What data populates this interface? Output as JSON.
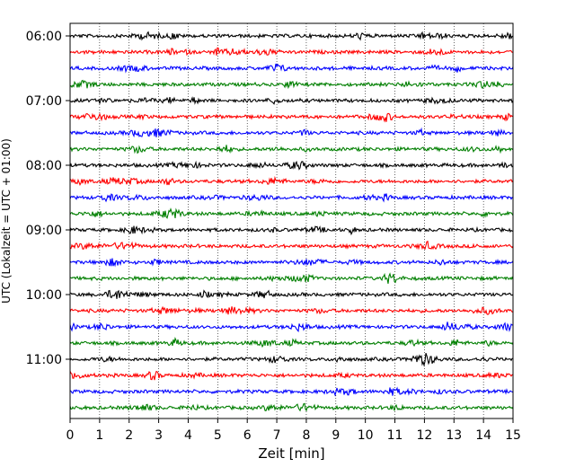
{
  "chart_data": {
    "type": "line",
    "subtype": "helicorder",
    "xlabel": "Zeit  [min]",
    "ylabel": "UTC (Lokalzeit = UTC + 01:00)",
    "xlim": [
      0,
      15
    ],
    "x_ticks": [
      0,
      1,
      2,
      3,
      4,
      5,
      6,
      7,
      8,
      9,
      10,
      11,
      12,
      13,
      14,
      15
    ],
    "y_tick_labels": [
      "06:00",
      "07:00",
      "08:00",
      "09:00",
      "10:00",
      "11:00"
    ],
    "trace_start_times": [
      "06:00",
      "06:15",
      "06:30",
      "06:45",
      "07:00",
      "07:15",
      "07:30",
      "07:45",
      "08:00",
      "08:15",
      "08:30",
      "08:45",
      "09:00",
      "09:15",
      "09:30",
      "09:45",
      "10:00",
      "10:15",
      "10:30",
      "10:45",
      "11:00",
      "11:15",
      "11:30",
      "11:45"
    ],
    "trace_color_cycle": [
      "#000000",
      "#ff0000",
      "#0000ff",
      "#007f00"
    ],
    "trace_minutes_each": 15,
    "grid": "vertical-dotted",
    "legend": "none"
  }
}
